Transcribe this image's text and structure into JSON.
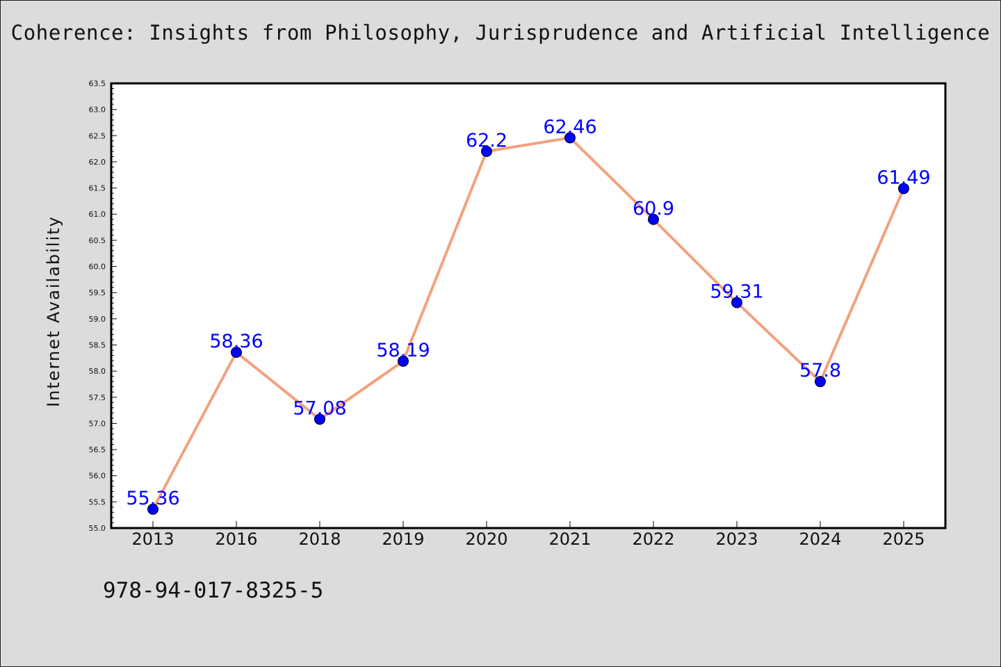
{
  "page": {
    "title": "Coherence: Insights from Philosophy, Jurisprudence and Artificial Intelligence",
    "footer": "978-94-017-8325-5"
  },
  "colors": {
    "background": "#dcdcdc",
    "plot_background": "#ffffff",
    "line": "#f4a07f",
    "marker": "#0000ff",
    "data_label": "#0000ff"
  },
  "chart_data": {
    "type": "line",
    "title": "Coherence: Insights from Philosophy, Jurisprudence and Artificial Intelligence",
    "xlabel": "",
    "ylabel": "Internet Availability",
    "categories": [
      "2013",
      "2016",
      "2018",
      "2019",
      "2020",
      "2021",
      "2022",
      "2023",
      "2024",
      "2025"
    ],
    "series": [
      {
        "values": [
          55.36,
          58.36,
          57.08,
          58.19,
          62.2,
          62.46,
          60.9,
          59.31,
          57.8,
          61.49
        ],
        "data_labels": [
          "55.36",
          "58.36",
          "57.08",
          "58.19",
          "62.2",
          "62.46",
          "60.9",
          "59.31",
          "57.8",
          "61.49"
        ]
      }
    ],
    "ylim": [
      55.0,
      63.5
    ],
    "yticks": [
      "55.0",
      "55.5",
      "56.0",
      "56.5",
      "57.0",
      "57.5",
      "58.0",
      "58.5",
      "59.0",
      "59.5",
      "60.0",
      "60.5",
      "61.0",
      "61.5",
      "62.0",
      "62.5",
      "63.0",
      "63.5"
    ],
    "grid": false,
    "legend": "none"
  }
}
